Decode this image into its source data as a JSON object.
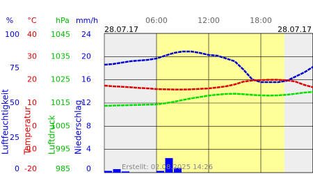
{
  "chart_data": {
    "type": "line",
    "date_left": "28.07.17",
    "date_right": "28.07.17",
    "created": "Erstellt: 02.08.2025 14:26",
    "xlim": [
      0,
      24
    ],
    "xticks": [
      {
        "value": 6,
        "label": "06:00"
      },
      {
        "value": 12,
        "label": "12:00"
      },
      {
        "value": 18,
        "label": "18:00"
      }
    ],
    "daylight": [
      6,
      20.7
    ],
    "grid": true,
    "axes": [
      {
        "unit": "%",
        "title": "Luftfeuchtigkeit",
        "color": "#0000dd",
        "lim": [
          0,
          100
        ],
        "ticks": [
          0,
          25,
          50,
          75,
          100
        ]
      },
      {
        "unit": "°C",
        "title": "Temperatur",
        "color": "#dd0000",
        "lim": [
          -20,
          40
        ],
        "ticks": [
          -20,
          -10,
          0,
          10,
          20,
          30,
          40
        ]
      },
      {
        "unit": "hPa",
        "title": "Luftdruck",
        "color": "#00bb00",
        "lim": [
          985,
          1045
        ],
        "ticks": [
          985,
          995,
          1005,
          1015,
          1025,
          1035,
          1045
        ]
      },
      {
        "unit": "mm/h",
        "title": "Niederschlag",
        "color": "#0000dd",
        "lim": [
          0,
          24
        ],
        "ticks": [
          0,
          4,
          8,
          12,
          16,
          20,
          24
        ]
      }
    ],
    "x": [
      0,
      1,
      2,
      3,
      4,
      5,
      6,
      7,
      8,
      9,
      10,
      11,
      12,
      13,
      14,
      15,
      16,
      17,
      18,
      19,
      20,
      21,
      22,
      23,
      24
    ],
    "series": [
      {
        "axis": 0,
        "color": "#0000cc",
        "kind": "line",
        "values": [
          77.5,
          78,
          79,
          80,
          80.5,
          81,
          82,
          84,
          86,
          87,
          87,
          86,
          84.5,
          84,
          82,
          80,
          74,
          67,
          65,
          65,
          65,
          66,
          69,
          72,
          76
        ]
      },
      {
        "axis": 1,
        "color": "#dd0000",
        "kind": "line",
        "values": [
          17.5,
          17.2,
          17,
          16.8,
          16.5,
          16.3,
          16,
          15.9,
          15.8,
          15.8,
          15.9,
          16.1,
          16.3,
          16.7,
          17.2,
          18,
          19.2,
          19.7,
          19.9,
          20,
          20,
          19.8,
          19.2,
          17.8,
          16.8
        ]
      },
      {
        "axis": 2,
        "color": "#00dd00",
        "kind": "line",
        "values": [
          1013.8,
          1013.9,
          1014,
          1014.1,
          1014.2,
          1014.3,
          1014.4,
          1014.9,
          1015.5,
          1016.3,
          1017,
          1017.6,
          1018.2,
          1018.6,
          1018.9,
          1019,
          1018.8,
          1018.5,
          1018.3,
          1018.2,
          1018.3,
          1018.6,
          1019,
          1019.5,
          1019.8
        ]
      },
      {
        "axis": 3,
        "color": "#0000ff",
        "kind": "bar",
        "values": [
          0.3,
          0.6,
          0.2,
          0,
          0,
          0,
          0.3,
          2.5,
          0.8,
          0,
          0,
          0,
          0,
          0,
          0,
          0,
          0,
          0,
          0,
          0,
          0,
          0,
          0,
          0,
          0
        ]
      }
    ]
  }
}
